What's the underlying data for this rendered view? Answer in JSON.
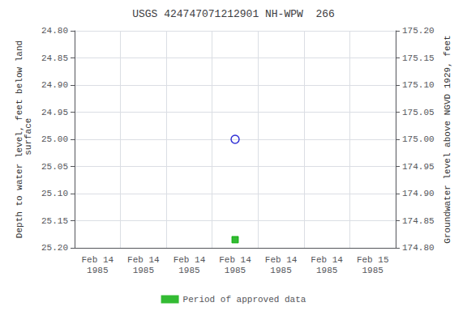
{
  "chart_data": {
    "type": "scatter",
    "title": "USGS 424747071212901 NH-WPW  266",
    "y_label": "Depth to water level, feet below land\n surface",
    "y2_label": "Groundwater level above NGVD 1929, feet",
    "categories": [
      "Feb 14\n1985",
      "Feb 14\n1985",
      "Feb 14\n1985",
      "Feb 14\n1985",
      "Feb 14\n1985",
      "Feb 14\n1985",
      "Feb 15\n1985"
    ],
    "series": [
      {
        "color": "#0000cc",
        "marker": "open_circle",
        "values": [
          null,
          null,
          null,
          25.0,
          null,
          null,
          null
        ]
      },
      {
        "name": "Period of approved data",
        "color": "#00aa00",
        "marker": "square",
        "values": [
          null,
          null,
          null,
          25.185,
          null,
          null,
          null
        ]
      }
    ],
    "ylim": [
      25.2,
      24.8
    ],
    "yticks": [
      {
        "value": 24.8,
        "label": "24.80"
      },
      {
        "value": 24.85,
        "label": "24.85"
      },
      {
        "value": 24.9,
        "label": "24.90"
      },
      {
        "value": 24.95,
        "label": "24.95"
      },
      {
        "value": 25.0,
        "label": "25.00"
      },
      {
        "value": 25.05,
        "label": "25.05"
      },
      {
        "value": 25.1,
        "label": "25.10"
      },
      {
        "value": 25.15,
        "label": "25.15"
      },
      {
        "value": 25.2,
        "label": "25.20"
      }
    ],
    "y2lim": [
      174.8,
      175.2
    ],
    "y2ticks": [
      {
        "value": 175.2,
        "label": "175.20"
      },
      {
        "value": 175.15,
        "label": "175.15"
      },
      {
        "value": 175.1,
        "label": "175.10"
      },
      {
        "value": 175.05,
        "label": "175.05"
      },
      {
        "value": 175.0,
        "label": "175.00"
      },
      {
        "value": 174.95,
        "label": "174.95"
      },
      {
        "value": 174.9,
        "label": "174.90"
      },
      {
        "value": 174.85,
        "label": "174.85"
      },
      {
        "value": 174.8,
        "label": "174.80"
      }
    ],
    "grid": true,
    "legend": "bottom"
  }
}
